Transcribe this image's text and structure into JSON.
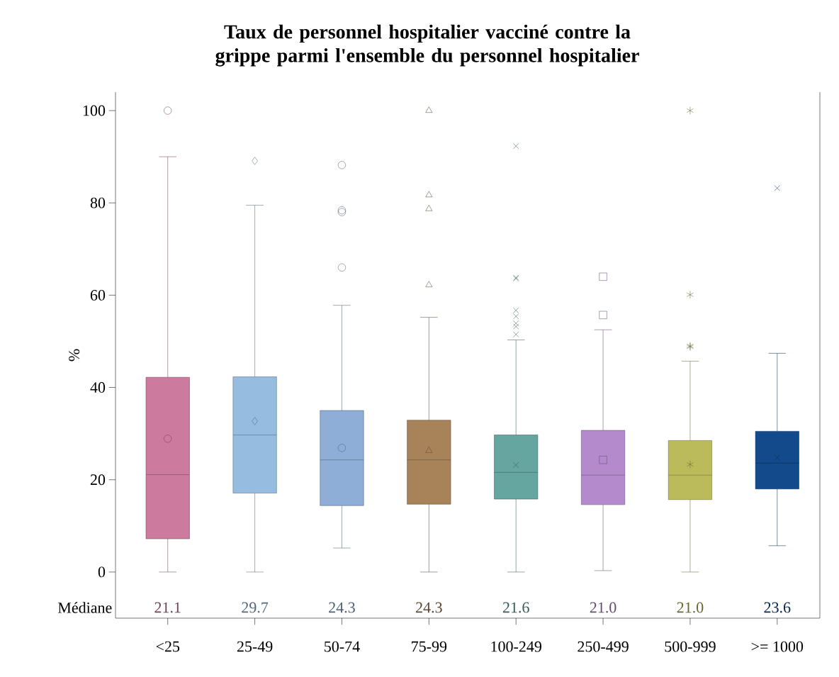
{
  "chart_data": {
    "type": "box",
    "title": "Taux de personnel hospitalier vacciné contre la grippe parmi l'ensemble du personnel hospitalier",
    "ylabel": "%",
    "categories": [
      "<25",
      "25-49",
      "50-74",
      "75-99",
      "100-249",
      "250-499",
      "500-999",
      ">= 1000"
    ],
    "ylim": [
      -10,
      104
    ],
    "yticks": [
      0,
      20,
      40,
      60,
      80,
      100
    ],
    "value_labels": [
      "21.1",
      "29.7",
      "24.3",
      "24.3",
      "21.6",
      "21.0",
      "21.0",
      "23.6"
    ],
    "annotations": [
      "Médiane"
    ],
    "series": [
      {
        "color": "#cc7a9e",
        "marker": "circle",
        "boxes": [
          {
            "low": 0,
            "q1": 7.2,
            "median": 21.1,
            "q3": 42.2,
            "high": 90,
            "mean": 28.9,
            "outliers": [
              100
            ]
          },
          null,
          null,
          null,
          null,
          null,
          null,
          null
        ]
      },
      {
        "color": "#96bce0",
        "marker": "diamond",
        "boxes": [
          null,
          {
            "low": 0,
            "q1": 17.1,
            "median": 29.7,
            "q3": 42.3,
            "high": 79.5,
            "mean": 32.7,
            "outliers": [
              89.1
            ]
          },
          null,
          null,
          null,
          null,
          null,
          null
        ]
      },
      {
        "color": "#8eaed8",
        "marker": "circle",
        "boxes": [
          null,
          null,
          {
            "low": 5.2,
            "q1": 14.4,
            "median": 24.3,
            "q3": 35.0,
            "high": 57.8,
            "mean": 26.9,
            "outliers": [
              88.2,
              78.4,
              78.0,
              66.0
            ]
          },
          null,
          null,
          null,
          null,
          null
        ]
      },
      {
        "color": "#a8835a",
        "marker": "triangle",
        "boxes": [
          null,
          null,
          null,
          {
            "low": 0,
            "q1": 14.7,
            "median": 24.3,
            "q3": 32.9,
            "high": 55.2,
            "mean": 26.3,
            "outliers": [
              100,
              81.7,
              78.7,
              62.2
            ]
          },
          null,
          null,
          null,
          null
        ]
      },
      {
        "color": "#66a6a0",
        "marker": "cross",
        "boxes": [
          null,
          null,
          null,
          null,
          {
            "low": 0,
            "q1": 15.8,
            "median": 21.6,
            "q3": 29.7,
            "high": 50.3,
            "mean": 23.2,
            "outliers": [
              92.3,
              63.8,
              63.6,
              56.7,
              55.4,
              53.9,
              53.2,
              51.5
            ]
          },
          null,
          null,
          null
        ]
      },
      {
        "color": "#b48acc",
        "marker": "square",
        "boxes": [
          null,
          null,
          null,
          null,
          null,
          {
            "low": 0.3,
            "q1": 14.6,
            "median": 21.0,
            "q3": 30.7,
            "high": 52.5,
            "mean": 24.3,
            "outliers": [
              64.0,
              55.7
            ]
          },
          null,
          null
        ]
      },
      {
        "color": "#bbbb5c",
        "marker": "star",
        "boxes": [
          null,
          null,
          null,
          null,
          null,
          null,
          {
            "low": 0,
            "q1": 15.7,
            "median": 21.0,
            "q3": 28.5,
            "high": 45.7,
            "mean": 23.3,
            "outliers": [
              100,
              60.1,
              49.0,
              48.8
            ]
          },
          null
        ]
      },
      {
        "color": "#124a8c",
        "marker": "cross",
        "boxes": [
          null,
          null,
          null,
          null,
          null,
          null,
          null,
          {
            "low": 5.7,
            "q1": 18.0,
            "median": 23.6,
            "q3": 30.5,
            "high": 47.4,
            "mean": 24.8,
            "outliers": [
              83.2
            ]
          }
        ]
      }
    ]
  }
}
